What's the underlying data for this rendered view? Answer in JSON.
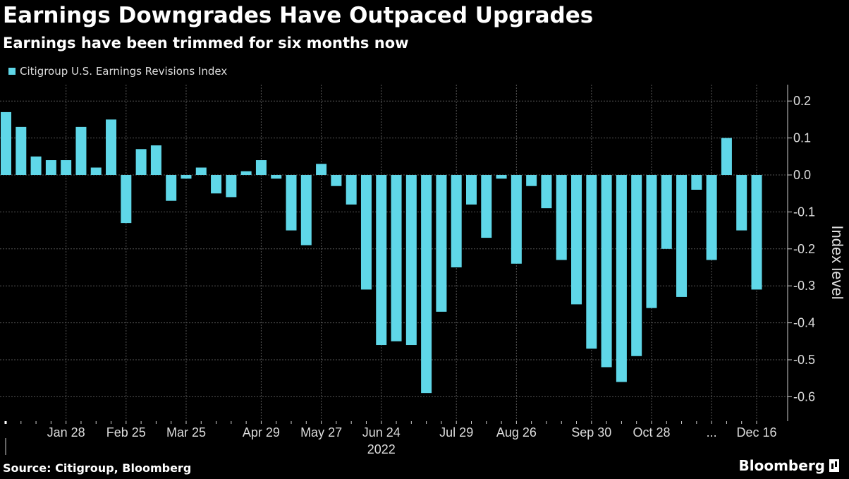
{
  "header": {
    "title": "Earnings Downgrades Have Outpaced Upgrades",
    "subtitle": "Earnings have been trimmed for six months now"
  },
  "footer": {
    "source": "Source: Citigroup, Bloomberg",
    "brand": "Bloomberg"
  },
  "colors": {
    "background": "#000000",
    "bar": "#5fd7e8",
    "grid": "#555555",
    "text": "#dddddd"
  },
  "chart_data": {
    "type": "bar",
    "title": "Earnings Downgrades Have Outpaced Upgrades",
    "subtitle": "Earnings have been trimmed for six months now",
    "ylabel": "Index level",
    "ylim": [
      -0.65,
      0.2
    ],
    "yticks": [
      0.2,
      0.1,
      0.0,
      -0.1,
      -0.2,
      -0.3,
      -0.4,
      -0.5,
      -0.6
    ],
    "ytick_labels": [
      "0.2",
      "0.1",
      "0.0",
      "-0.1",
      "-0.2",
      "-0.3",
      "-0.4",
      "-0.5",
      "-0.6"
    ],
    "y_axis_side": "right",
    "grid": true,
    "legend_position": "top-left",
    "year_label": "2022",
    "series": [
      {
        "name": "Citigroup U.S. Earnings Revisions Index",
        "values": [
          0.17,
          0.13,
          0.05,
          0.04,
          0.04,
          0.13,
          0.02,
          0.15,
          -0.13,
          0.07,
          0.08,
          -0.07,
          -0.01,
          0.02,
          -0.05,
          -0.06,
          0.01,
          0.04,
          -0.01,
          -0.15,
          -0.19,
          0.03,
          -0.03,
          -0.08,
          -0.31,
          -0.46,
          -0.45,
          -0.46,
          -0.59,
          -0.37,
          -0.25,
          -0.08,
          -0.17,
          -0.01,
          -0.24,
          -0.03,
          -0.09,
          -0.23,
          -0.35,
          -0.47,
          -0.52,
          -0.56,
          -0.49,
          -0.36,
          -0.2,
          -0.33,
          -0.04,
          -0.23,
          0.1,
          -0.15,
          -0.31
        ]
      }
    ],
    "x_tick_labels": [
      {
        "label": "Jan 28",
        "index": 4
      },
      {
        "label": "Feb 25",
        "index": 8
      },
      {
        "label": "Mar 25",
        "index": 12
      },
      {
        "label": "Apr 29",
        "index": 17
      },
      {
        "label": "May 27",
        "index": 21
      },
      {
        "label": "Jun 24",
        "index": 25
      },
      {
        "label": "Jul 29",
        "index": 30
      },
      {
        "label": "Aug 26",
        "index": 34
      },
      {
        "label": "Sep 30",
        "index": 39
      },
      {
        "label": "Oct 28",
        "index": 43
      },
      {
        "label": "...",
        "index": 47
      },
      {
        "label": "Dec 16",
        "index": 50
      }
    ]
  }
}
